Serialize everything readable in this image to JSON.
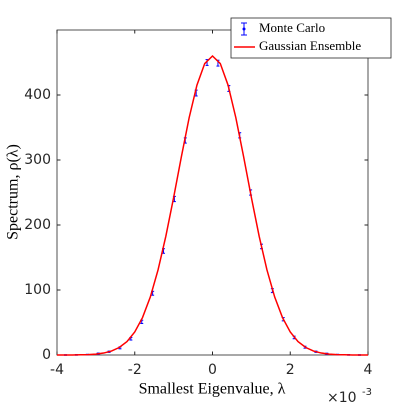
{
  "chart_data": {
    "type": "line",
    "xlabel": "Smallest Eigenvalue, λ",
    "ylabel": "Spectrum, ρ(λ)",
    "x_multiplier": "×10",
    "x_exponent": "-3",
    "xlim": [
      -4,
      4
    ],
    "xticks": [
      -4,
      -2,
      0,
      2,
      4
    ],
    "ylim": [
      0,
      500
    ],
    "yticks": [
      0,
      100,
      200,
      300,
      400
    ],
    "legend": "top-right",
    "series": [
      {
        "name": "Monte Carlo",
        "type": "errorbar",
        "color": "#0000ff",
        "x": [
          -3.78,
          -3.5,
          -3.22,
          -2.94,
          -2.66,
          -2.38,
          -2.1,
          -1.82,
          -1.54,
          -1.26,
          -0.98,
          -0.7,
          -0.42,
          -0.14,
          0.14,
          0.42,
          0.7,
          0.98,
          1.26,
          1.54,
          1.82,
          2.1,
          2.38,
          2.66,
          2.94,
          3.22,
          3.5,
          3.78
        ],
        "values": [
          0,
          0.2,
          0.6,
          2,
          5,
          11,
          25,
          51,
          95,
          160,
          240,
          330,
          403,
          450,
          449,
          410,
          338,
          250,
          167,
          99,
          55,
          27,
          12,
          5,
          1.8,
          0.6,
          0.2,
          0
        ],
        "errors": [
          0.5,
          0.5,
          0.5,
          1,
          1,
          1.5,
          2,
          2.5,
          3,
          3.5,
          4,
          4,
          4.5,
          4.5,
          4.5,
          4.5,
          4,
          4,
          3.5,
          3,
          2.5,
          2,
          1.5,
          1,
          1,
          0.5,
          0.5,
          0.5
        ]
      },
      {
        "name": "Gaussian Ensemble",
        "type": "line",
        "color": "#ff0000",
        "x": [
          -4,
          -3.8,
          -3.6,
          -3.4,
          -3.2,
          -3,
          -2.8,
          -2.6,
          -2.4,
          -2.2,
          -2,
          -1.8,
          -1.6,
          -1.4,
          -1.2,
          -1,
          -0.8,
          -0.6,
          -0.4,
          -0.2,
          0,
          0.2,
          0.4,
          0.6,
          0.8,
          1,
          1.2,
          1.4,
          1.6,
          1.8,
          2,
          2.2,
          2.4,
          2.6,
          2.8,
          3,
          3.2,
          3.4,
          3.6,
          3.8,
          4
        ],
        "values": [
          0,
          0,
          0.1,
          0.3,
          0.6,
          1.4,
          3,
          6,
          11.5,
          20.7,
          35.4,
          57.6,
          89.2,
          131,
          182.8,
          242.3,
          305.2,
          365.2,
          415.2,
          448.4,
          460,
          448.4,
          415.2,
          365.2,
          305.2,
          242.3,
          182.8,
          131,
          89.2,
          57.6,
          35.4,
          20.7,
          11.5,
          6,
          3,
          1.4,
          0.6,
          0.3,
          0.1,
          0,
          0
        ]
      }
    ]
  }
}
